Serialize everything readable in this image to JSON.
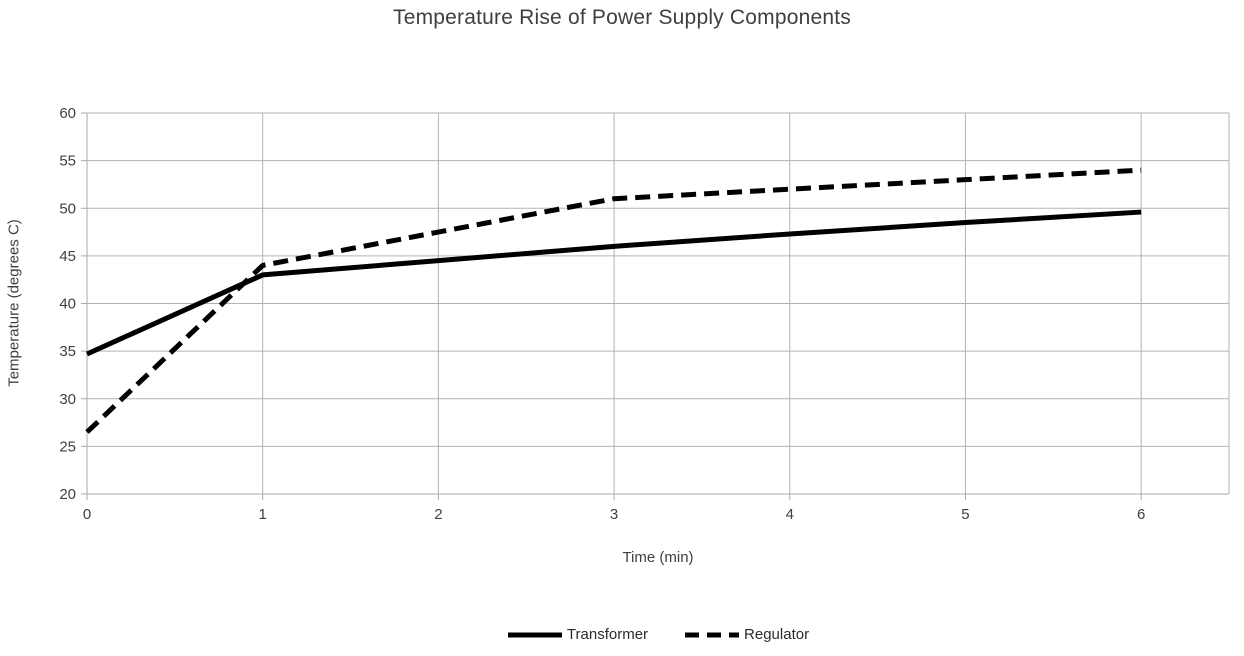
{
  "chart_data": {
    "type": "line",
    "title": "Temperature Rise of Power Supply Components",
    "xlabel": "Time (min)",
    "ylabel": "Temperature (degrees C)",
    "x": [
      0,
      1,
      2,
      3,
      4,
      5,
      6
    ],
    "x_ticks": [
      "0",
      "1",
      "2",
      "3",
      "4",
      "5",
      "6"
    ],
    "y_ticks": [
      "20",
      "25",
      "30",
      "35",
      "40",
      "45",
      "50",
      "55",
      "60"
    ],
    "xlim": [
      0,
      6.5
    ],
    "ylim": [
      20,
      60
    ],
    "grid": true,
    "legend_position": "bottom",
    "series": [
      {
        "name": "Transformer",
        "style": "solid",
        "color": "#000000",
        "values": [
          34.7,
          43.0,
          44.5,
          46.0,
          47.3,
          48.5,
          49.6
        ]
      },
      {
        "name": "Regulator",
        "style": "dashed",
        "color": "#000000",
        "values": [
          26.5,
          44.0,
          47.5,
          51.0,
          52.0,
          53.0,
          54.0
        ]
      }
    ],
    "colors": {
      "gridline": "#b3b3b3",
      "axis": "#a9a9a9",
      "tick_label": "#404040",
      "title": "#3f3f3f",
      "background": "#ffffff"
    }
  }
}
